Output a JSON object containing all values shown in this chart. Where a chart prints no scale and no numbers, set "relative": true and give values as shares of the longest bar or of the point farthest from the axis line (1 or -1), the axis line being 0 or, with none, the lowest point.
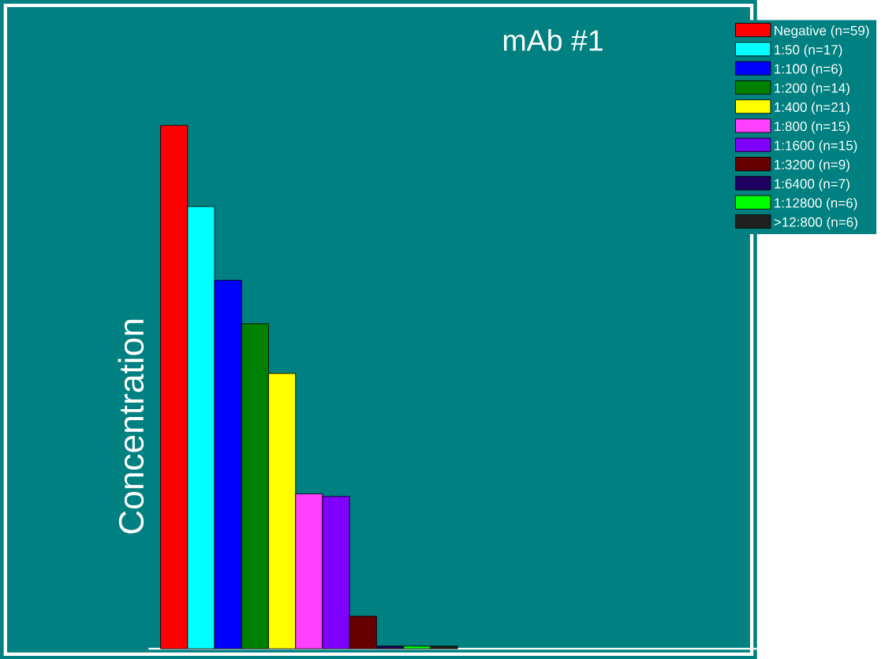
{
  "chart_data": {
    "type": "bar",
    "title": "mAb #1",
    "ylabel": "Concentration",
    "relative": true,
    "legend": "top right",
    "categories": [
      null
    ],
    "series": [
      {
        "name": "Negative (n=59)",
        "color": "#ff0000",
        "values": [
          1
        ]
      },
      {
        "name": "1:50 (n=17)",
        "color": "#00ffff",
        "values": [
          0.845
        ]
      },
      {
        "name": "1:100 (n=6)",
        "color": "#0000ff",
        "values": [
          0.704
        ]
      },
      {
        "name": "1:200 (n=14)",
        "color": "#008000",
        "values": [
          0.621
        ]
      },
      {
        "name": "1:400 (n=21)",
        "color": "#ffff00",
        "values": [
          0.526
        ]
      },
      {
        "name": "1:800 (n=15)",
        "color": "#ff40ff",
        "values": [
          0.296
        ]
      },
      {
        "name": "1:1600 (n=15)",
        "color": "#8000ff",
        "values": [
          0.291
        ]
      },
      {
        "name": "1:3200 (n=9)",
        "color": "#660000",
        "values": [
          0.062
        ]
      },
      {
        "name": "1:6400 (n=7)",
        "color": "#200060",
        "values": [
          0.005
        ]
      },
      {
        "name": "1:12800 (n=6)",
        "color": "#00ff00",
        "values": [
          0.005
        ]
      },
      {
        "name": ">12:800 (n=6)",
        "color": "#202020",
        "values": [
          0.005
        ]
      }
    ]
  }
}
